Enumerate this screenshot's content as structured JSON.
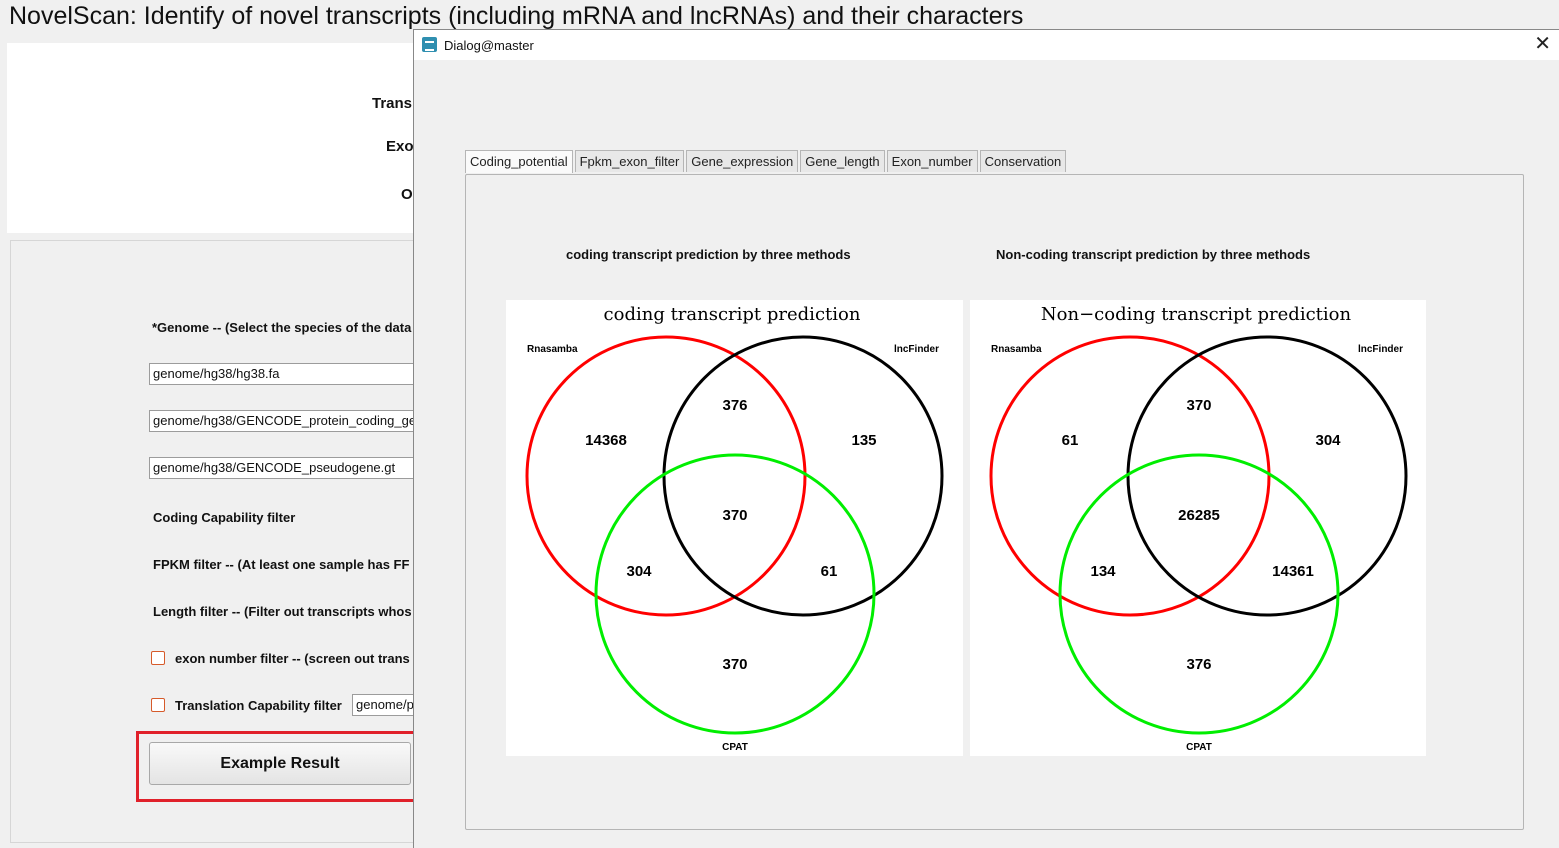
{
  "main_window": {
    "title": "NovelScan: Identify of novel transcripts (including mRNA and lncRNAs) and their characters",
    "header_fragments": [
      "Trans",
      "Exo",
      "O"
    ],
    "labels": {
      "genome": "*Genome  --  (Select the species of the data",
      "coding_capability": "Coding Capability filter",
      "fpkm": "FPKM filter  --  (At least one sample has FF",
      "length": "Length filter  --  (Filter out transcripts whos",
      "exon_number": "exon number filter  --  (screen out trans",
      "translation": "Translation Capability filter"
    },
    "fields": {
      "genome_fa": "genome/hg38/hg38.fa",
      "gencode_coding": "genome/hg38/GENCODE_protein_coding_ge",
      "gencode_pseudo": "genome/hg38/GENCODE_pseudogene.gt",
      "translation_path": "genome/p"
    },
    "example_button": "Example Result"
  },
  "dialog": {
    "title": "Dialog@master",
    "tabs": [
      "Coding_potential",
      "Fpkm_exon_filter",
      "Gene_expression",
      "Gene_length",
      "Exon_number",
      "Conservation"
    ],
    "active_tab": "Coding_potential",
    "left_caption": "coding transcript prediction by three methods",
    "right_caption": "Non-coding transcript prediction by three methods"
  },
  "colors": {
    "highlight_border": "#e0202a",
    "set_a": "#ff0000",
    "set_b": "#000000",
    "set_c": "#00ee00"
  },
  "chart_data": [
    {
      "type": "venn",
      "title": "coding transcript prediction",
      "sets": [
        "Rnasamba",
        "lncFinder",
        "CPAT"
      ],
      "regions": {
        "Rnasamba_only": 14368,
        "lncFinder_only": 135,
        "CPAT_only": 370,
        "Rnasamba_lncFinder": 376,
        "Rnasamba_CPAT": 304,
        "lncFinder_CPAT": 61,
        "all_three": 370
      }
    },
    {
      "type": "venn",
      "title": "Non−coding transcript prediction",
      "sets": [
        "Rnasamba",
        "lncFinder",
        "CPAT"
      ],
      "regions": {
        "Rnasamba_only": 61,
        "lncFinder_only": 304,
        "CPAT_only": 376,
        "Rnasamba_lncFinder": 370,
        "Rnasamba_CPAT": 134,
        "lncFinder_CPAT": 14361,
        "all_three": 26285
      }
    }
  ]
}
